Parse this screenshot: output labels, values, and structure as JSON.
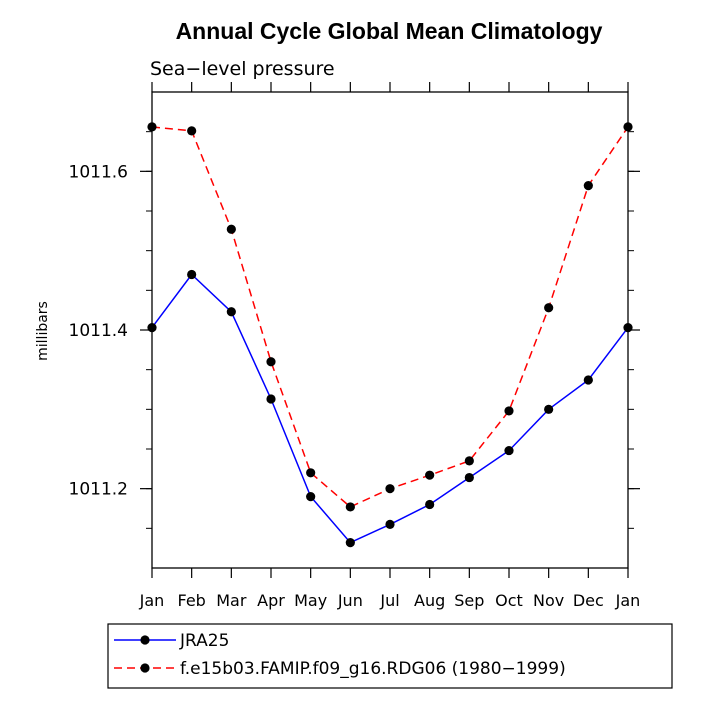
{
  "chart_data": {
    "type": "line",
    "title": "Annual Cycle Global Mean Climatology",
    "subtitle": "Sea−level pressure",
    "xlabel": "",
    "ylabel": "millibars",
    "categories": [
      "Jan",
      "Feb",
      "Mar",
      "Apr",
      "May",
      "Jun",
      "Jul",
      "Aug",
      "Sep",
      "Oct",
      "Nov",
      "Dec",
      "Jan"
    ],
    "ylim": [
      1011.1,
      1011.7
    ],
    "yticks": [
      1011.2,
      1011.4,
      1011.6
    ],
    "ytick_labels": [
      "1011.2",
      "1011.4",
      "1011.6"
    ],
    "yminor_step": 0.05,
    "grid": false,
    "legend_position": "bottom",
    "series": [
      {
        "name": "JRA25",
        "color": "#0000ff",
        "dash": "solid",
        "values": [
          1011.403,
          1011.47,
          1011.423,
          1011.313,
          1011.19,
          1011.132,
          1011.155,
          1011.18,
          1011.214,
          1011.248,
          1011.3,
          1011.337,
          1011.403
        ]
      },
      {
        "name": "f.e15b03.FAMIP.f09_g16.RDG06 (1980−1999)",
        "color": "#ff0000",
        "dash": "dashed",
        "values": [
          1011.656,
          1011.651,
          1011.527,
          1011.36,
          1011.22,
          1011.177,
          1011.2,
          1011.217,
          1011.235,
          1011.298,
          1011.428,
          1011.582,
          1011.656
        ]
      }
    ]
  }
}
